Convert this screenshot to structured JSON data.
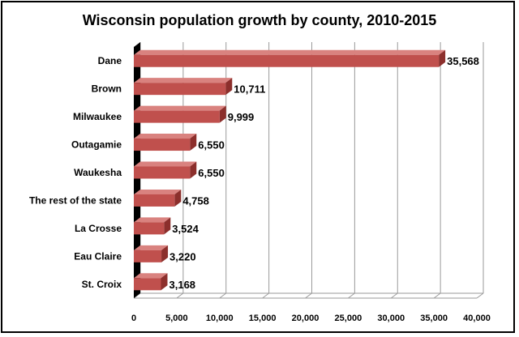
{
  "chart_data": {
    "type": "bar",
    "orientation": "horizontal",
    "title": "Wisconsin population growth by county, 2010-2015",
    "categories": [
      "Dane",
      "Brown",
      "Milwaukee",
      "Outagamie",
      "Waukesha",
      "The rest of the state",
      "La Crosse",
      "Eau Claire",
      "St. Croix"
    ],
    "values": [
      35568,
      10711,
      9999,
      6550,
      6550,
      4758,
      3524,
      3220,
      3168
    ],
    "data_labels": [
      "35,568",
      "10,711",
      "9,999",
      "6,550",
      "6,550",
      "4,758",
      "3,524",
      "3,220",
      "3,168"
    ],
    "xlim": [
      0,
      40000
    ],
    "x_ticks": [
      0,
      5000,
      10000,
      15000,
      20000,
      25000,
      30000,
      35000,
      40000
    ],
    "x_tick_labels": [
      "0",
      "5,000",
      "10,000",
      "15,000",
      "20,000",
      "25,000",
      "30,000",
      "35,000",
      "40,000"
    ],
    "xlabel": "",
    "ylabel": "",
    "grid": true,
    "legend": "none",
    "bar_color": "#c0504d",
    "bar_top_color": "#d9827f",
    "bar_side_color": "#8c2f2c"
  }
}
